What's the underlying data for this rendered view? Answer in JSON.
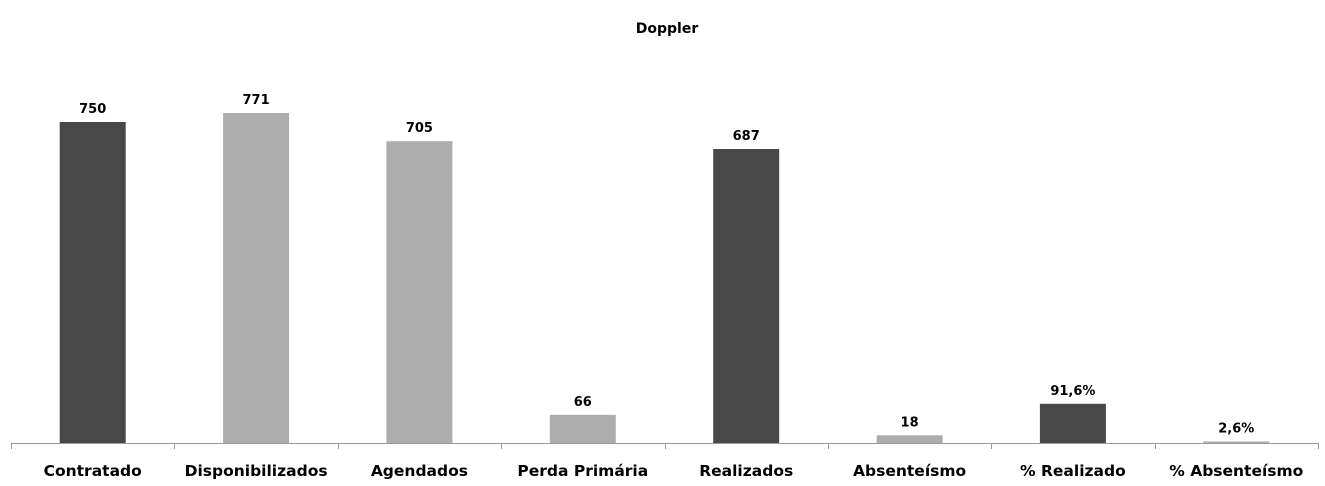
{
  "chart_data": {
    "type": "bar",
    "title": "Doppler",
    "categories": [
      "Contratado",
      "Disponibilizados",
      "Agendados",
      "Perda Primária",
      "Realizados",
      "Absenteísmo",
      "% Realizado",
      "% Absenteísmo"
    ],
    "values": [
      750,
      771,
      705,
      66,
      687,
      18,
      91.6,
      2.6
    ],
    "value_labels": [
      "750",
      "771",
      "705",
      "66",
      "687",
      "18",
      "91,6%",
      "2,6%"
    ],
    "bar_colors": [
      "#484848",
      "#adadad",
      "#adadad",
      "#adadad",
      "#484848",
      "#adadad",
      "#484848",
      "#adadad"
    ],
    "xlabel": "",
    "ylabel": "",
    "grid": false,
    "legend": "none"
  }
}
